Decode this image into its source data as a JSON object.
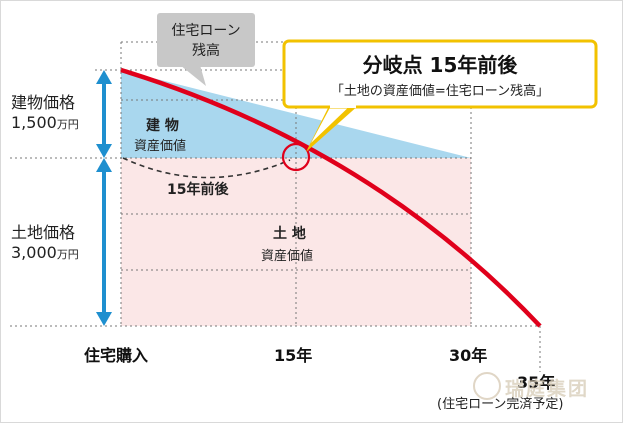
{
  "left_labels": {
    "building": {
      "title": "建物価格",
      "amount": "1,500",
      "unit": "万円"
    },
    "land": {
      "title": "土地価格",
      "amount": "3,000",
      "unit": "万円"
    }
  },
  "regions": {
    "building_value": {
      "line1": "建 物",
      "line2": "資産価値"
    },
    "land_value": {
      "line1": "土 地",
      "line2": "資産価値"
    }
  },
  "loan_label": {
    "line1": "住宅ローン",
    "line2": "残高"
  },
  "branch_callout": {
    "title": "分岐点 15年前後",
    "subtitle": "「土地の資産価値=住宅ローン残高」"
  },
  "curve_label": "15年前後",
  "x_labels": {
    "purchase": "住宅購入",
    "year15": "15年",
    "year30": "30年",
    "year35": "35年",
    "year35_note": "(住宅ローン完済予定)"
  },
  "watermark": "瑞庭集团",
  "colors": {
    "building_fill": "#a9d7ee",
    "land_fill": "#fbe7e7",
    "loan_line": "#e0001b",
    "arrow": "#1e8fcf",
    "callout_border": "#f2c200",
    "tag_fill": "#c8c8c8"
  }
}
